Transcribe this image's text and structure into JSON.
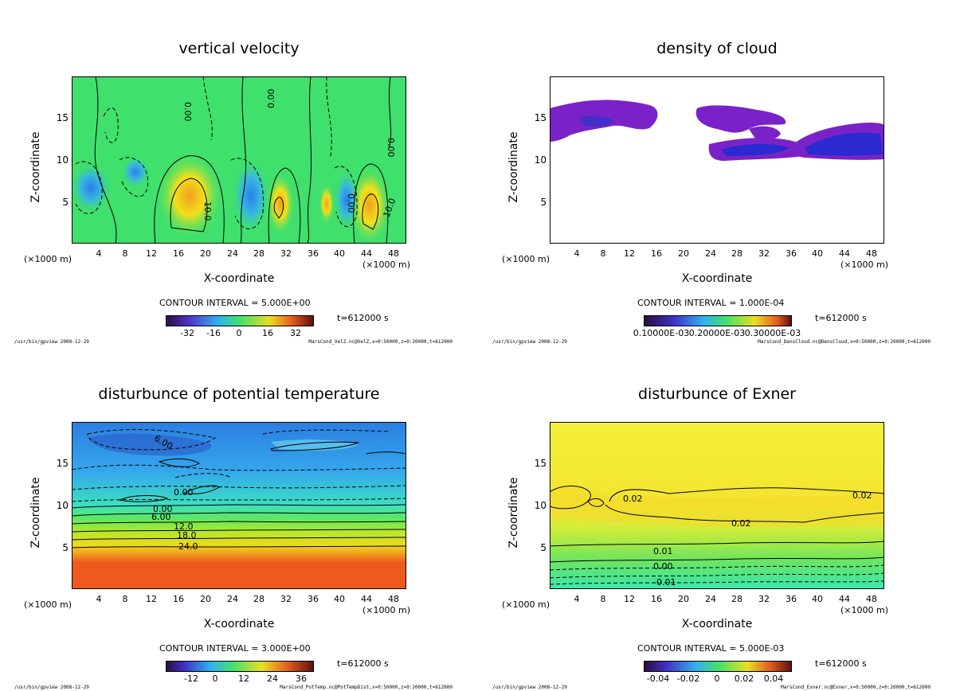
{
  "chart_data": [
    {
      "type": "contour",
      "title": "vertical velocity",
      "xlabel": "X-coordinate",
      "ylabel": "Z-coordinate",
      "x_unit_left": "(×1000 m)",
      "x_unit_right": "(×1000 m)",
      "xlim": [
        0,
        50
      ],
      "ylim": [
        0,
        20
      ],
      "x_ticks": [
        "4",
        "8",
        "12",
        "16",
        "20",
        "24",
        "28",
        "32",
        "36",
        "40",
        "44",
        "48"
      ],
      "y_ticks": [
        "5",
        "10",
        "15"
      ],
      "contour_labels": [
        "0.00",
        "0.00",
        "10.0",
        "0.00",
        "10.0",
        "0.00"
      ],
      "contour_interval": "CONTOUR INTERVAL = 5.000E+00",
      "colorbar_ticks": [
        "-32",
        "-16",
        "0",
        "16",
        "32"
      ],
      "time_label": "t=612000 s",
      "footer_left": "/usr/bin/gpview  2008-12-29",
      "footer_right": "MarsCond_VelZ.nc@VelZ,x=0:50000,z=0:20000,t=612000",
      "colors": {
        "background": "#3fe06c",
        "positive": "#f2e01a",
        "negative": "#3aa0ee"
      }
    },
    {
      "type": "contour",
      "title": "density of cloud",
      "xlabel": "X-coordinate",
      "ylabel": "Z-coordinate",
      "x_unit_left": "(×1000 m)",
      "x_unit_right": "(×1000 m)",
      "xlim": [
        0,
        50
      ],
      "ylim": [
        0,
        20
      ],
      "x_ticks": [
        "4",
        "8",
        "12",
        "16",
        "20",
        "24",
        "28",
        "32",
        "36",
        "40",
        "44",
        "48"
      ],
      "y_ticks": [
        "5",
        "10",
        "15"
      ],
      "contour_labels": [],
      "contour_interval": "CONTOUR INTERVAL = 1.000E-04",
      "colorbar_ticks": [
        "0.10000E-03",
        "0.20000E-03",
        "0.30000E-03"
      ],
      "time_label": "t=612000 s",
      "footer_left": "/usr/bin/gpview  2008-12-29",
      "footer_right": "MarsCond_DensCloud.nc@DensCloud,x=0:50000,z=0:20000,t=612000",
      "colors": {
        "cloud_edge": "#7a22c8",
        "cloud_core": "#2a2ad0"
      }
    },
    {
      "type": "contour",
      "title": "disturbunce of potential temperature",
      "xlabel": "X-coordinate",
      "ylabel": "Z-coordinate",
      "x_unit_left": "(×1000 m)",
      "x_unit_right": "(×1000 m)",
      "xlim": [
        0,
        50
      ],
      "ylim": [
        0,
        20
      ],
      "x_ticks": [
        "4",
        "8",
        "12",
        "16",
        "20",
        "24",
        "28",
        "32",
        "36",
        "40",
        "44",
        "48"
      ],
      "y_ticks": [
        "5",
        "10",
        "15"
      ],
      "contour_labels": [
        "6.00",
        "0.00",
        "0.00",
        "6.00",
        "12.0",
        "18.0",
        "24.0"
      ],
      "contour_interval": "CONTOUR INTERVAL = 3.000E+00",
      "colorbar_ticks": [
        "-12",
        "0",
        "12",
        "24",
        "36"
      ],
      "time_label": "t=612000 s",
      "footer_left": "/usr/bin/gpview  2008-12-29",
      "footer_right": "MarsCond_PotTemp.nc@PotTempDist,x=0:50000,z=0:20000,t=612000",
      "colors": {
        "upper": "#2c8ee8",
        "lower": "#ee5a1e"
      }
    },
    {
      "type": "contour",
      "title": "disturbunce of Exner",
      "xlabel": "X-coordinate",
      "ylabel": "Z-coordinate",
      "x_unit_left": "(×1000 m)",
      "x_unit_right": "(×1000 m)",
      "xlim": [
        0,
        50
      ],
      "ylim": [
        0,
        20
      ],
      "x_ticks": [
        "4",
        "8",
        "12",
        "16",
        "20",
        "24",
        "28",
        "32",
        "36",
        "40",
        "44",
        "48"
      ],
      "y_ticks": [
        "5",
        "10",
        "15"
      ],
      "contour_labels": [
        "0.02",
        "0.02",
        "0.02",
        "0.01",
        "0.00",
        "-0.01"
      ],
      "contour_interval": "CONTOUR INTERVAL = 5.000E-03",
      "colorbar_ticks": [
        "-0.04",
        "-0.02",
        "0",
        "0.02",
        "0.04"
      ],
      "time_label": "t=612000 s",
      "footer_left": "/usr/bin/gpview  2008-12-29",
      "footer_right": "MarsCond_Exner.nc@Exner,x=0:50000,z=0:20000,t=612000",
      "colors": {
        "upper": "#f2f03a",
        "lower": "#3ee8b0"
      }
    }
  ]
}
